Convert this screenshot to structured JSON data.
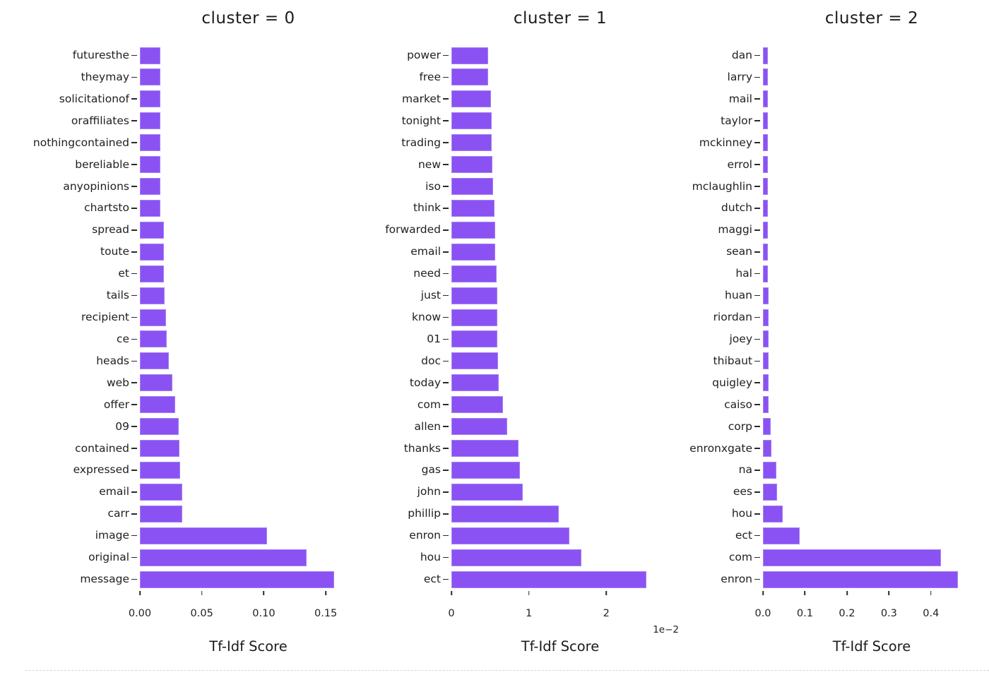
{
  "figure": {
    "bar_color": "#8a52f2",
    "text_color": "#1f1f1f",
    "shared_xlabel": "Tf-Idf Score"
  },
  "chart_data": [
    {
      "type": "bar",
      "orientation": "horizontal",
      "title": "cluster = 0",
      "xlabel": "Tf-Idf Score",
      "xlim": [
        0,
        0.175
      ],
      "grid": false,
      "legend": null,
      "offset_text": "",
      "xticks": [
        {
          "value": 0.0,
          "label": "0.00"
        },
        {
          "value": 0.05,
          "label": "0.05"
        },
        {
          "value": 0.1,
          "label": "0.10"
        },
        {
          "value": 0.15,
          "label": "0.15"
        }
      ],
      "categories": [
        "futuresthe",
        "theymay",
        "solicitationof",
        "oraffiliates",
        "nothingcontained",
        "bereliable",
        "anyopinions",
        "chartsto",
        "spread",
        "toute",
        "et",
        "tails",
        "recipient",
        "ce",
        "heads",
        "web",
        "offer",
        "09",
        "contained",
        "expressed",
        "email",
        "carr",
        "image",
        "original",
        "message"
      ],
      "values": [
        0.0164,
        0.0164,
        0.0164,
        0.0165,
        0.0165,
        0.0165,
        0.0166,
        0.0166,
        0.0193,
        0.0194,
        0.0196,
        0.0198,
        0.021,
        0.0218,
        0.0235,
        0.0264,
        0.0284,
        0.0312,
        0.0318,
        0.0327,
        0.034,
        0.0342,
        0.1028,
        0.1344,
        0.1568
      ]
    },
    {
      "type": "bar",
      "orientation": "horizontal",
      "title": "cluster = 1",
      "xlabel": "Tf-Idf Score",
      "xlim": [
        0,
        0.0281
      ],
      "grid": false,
      "legend": null,
      "offset_text": "1e−2",
      "xticks": [
        {
          "value": 0.0,
          "label": "0"
        },
        {
          "value": 0.01,
          "label": "1"
        },
        {
          "value": 0.02,
          "label": "2"
        }
      ],
      "categories": [
        "power",
        "free",
        "market",
        "tonight",
        "trading",
        "new",
        "iso",
        "think",
        "forwarded",
        "email",
        "need",
        "just",
        "know",
        "01",
        "doc",
        "today",
        "com",
        "allen",
        "thanks",
        "gas",
        "john",
        "phillip",
        "enron",
        "hou",
        "ect"
      ],
      "values": [
        0.00474,
        0.00477,
        0.00513,
        0.00521,
        0.00524,
        0.00533,
        0.00536,
        0.00553,
        0.00562,
        0.00568,
        0.00583,
        0.00591,
        0.00594,
        0.00596,
        0.00602,
        0.00611,
        0.00669,
        0.00723,
        0.00868,
        0.00888,
        0.00921,
        0.0139,
        0.01527,
        0.01677,
        0.02521
      ]
    },
    {
      "type": "bar",
      "orientation": "horizontal",
      "title": "cluster = 2",
      "xlabel": "Tf-Idf Score",
      "xlim": [
        0,
        0.518
      ],
      "grid": false,
      "legend": null,
      "offset_text": "",
      "xticks": [
        {
          "value": 0.0,
          "label": "0.0"
        },
        {
          "value": 0.1,
          "label": "0.1"
        },
        {
          "value": 0.2,
          "label": "0.2"
        },
        {
          "value": 0.3,
          "label": "0.3"
        },
        {
          "value": 0.4,
          "label": "0.4"
        }
      ],
      "categories": [
        "dan",
        "larry",
        "mail",
        "taylor",
        "mckinney",
        "errol",
        "mclaughlin",
        "dutch",
        "maggi",
        "sean",
        "hal",
        "huan",
        "riordan",
        "joey",
        "thibaut",
        "quigley",
        "caiso",
        "corp",
        "enronxgate",
        "na",
        "ees",
        "hou",
        "ect",
        "com",
        "enron"
      ],
      "values": [
        0.0111,
        0.0112,
        0.0113,
        0.0114,
        0.0116,
        0.0117,
        0.0119,
        0.0121,
        0.0122,
        0.0123,
        0.0125,
        0.0127,
        0.0128,
        0.0129,
        0.0131,
        0.0134,
        0.014,
        0.019,
        0.021,
        0.0322,
        0.034,
        0.0474,
        0.0878,
        0.4232,
        0.4642
      ]
    }
  ]
}
